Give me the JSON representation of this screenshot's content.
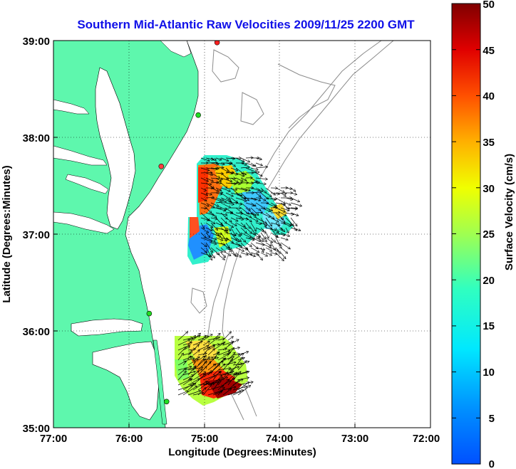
{
  "title": "Southern Mid-Atlantic Raw Velocities 2009/11/25 2200 GMT",
  "map": {
    "xlabel": "Longitude (Degrees:Minutes)",
    "ylabel": "Latitude (Degrees:Minutes)",
    "x_ticks": [
      "77:00",
      "76:00",
      "75:00",
      "74:00",
      "73:00",
      "72:00"
    ],
    "y_ticks": [
      "39:00",
      "38:00",
      "37:00",
      "36:00",
      "35:00"
    ],
    "lon_range": [
      -77,
      -72
    ],
    "lat_range": [
      35,
      39
    ],
    "grid": "dotted",
    "colors": {
      "land": "#5ef7ad",
      "water": "#ffffff",
      "bathymetry": "#8c8c8c",
      "frame": "#000000"
    },
    "stations": [
      {
        "lon": -74.83,
        "lat": 38.98,
        "color": "#ff2020"
      },
      {
        "lon": -75.08,
        "lat": 38.23,
        "color": "#22dd22"
      },
      {
        "lon": -75.57,
        "lat": 37.7,
        "color": "#ff4040"
      },
      {
        "lon": -75.73,
        "lat": 36.18,
        "color": "#22dd22"
      },
      {
        "lon": -75.5,
        "lat": 35.27,
        "color": "#22dd22"
      }
    ]
  },
  "colorbar": {
    "label": "Surface Velocity (cm/s)",
    "min": 0,
    "max": 50,
    "ticks": [
      "0",
      "5",
      "10",
      "15",
      "20",
      "25",
      "30",
      "35",
      "40",
      "45",
      "50"
    ],
    "colormap": "jet"
  }
}
